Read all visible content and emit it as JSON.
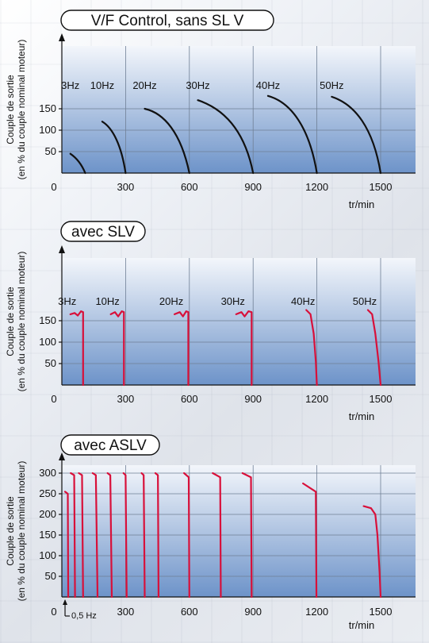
{
  "colors": {
    "plot_top": "#f3f6fb",
    "plot_bottom": "#6d93c9",
    "curve_v_f": "#111111",
    "curve_red": "#d8103a"
  },
  "chart_data": [
    {
      "type": "line",
      "title": "V/F Control, sans   SL V",
      "xlabel": "tr/min",
      "ylabel": [
        "Couple de sortie",
        "(en % du couple nominal moteur)"
      ],
      "xlim": [
        0,
        1650
      ],
      "ylim": [
        0,
        190
      ],
      "xticks": [
        "0",
        "300",
        "600",
        "900",
        "1200",
        "1500"
      ],
      "yticks": [
        "50",
        "100",
        "150"
      ],
      "grid": true,
      "series": [
        {
          "name": "3Hz",
          "x": [
            40,
            70,
            95,
            110
          ],
          "y": [
            45,
            35,
            18,
            0
          ]
        },
        {
          "name": "10Hz",
          "x": [
            190,
            240,
            280,
            300
          ],
          "y": [
            120,
            105,
            65,
            0
          ]
        },
        {
          "name": "20Hz",
          "x": [
            390,
            480,
            560,
            600
          ],
          "y": [
            150,
            140,
            95,
            0
          ]
        },
        {
          "name": "30Hz",
          "x": [
            640,
            760,
            860,
            900
          ],
          "y": [
            170,
            150,
            100,
            0
          ]
        },
        {
          "name": "40Hz",
          "x": [
            970,
            1080,
            1165,
            1200
          ],
          "y": [
            180,
            165,
            105,
            0
          ]
        },
        {
          "name": "50Hz",
          "x": [
            1270,
            1380,
            1465,
            1500
          ],
          "y": [
            178,
            160,
            105,
            0
          ]
        }
      ]
    },
    {
      "type": "line",
      "title": "avec SLV",
      "xlabel": "tr/min",
      "ylabel": [
        "Couple de sortie",
        "(en % du couple nominal moteur)"
      ],
      "xlim": [
        0,
        1650
      ],
      "ylim": [
        0,
        190
      ],
      "xticks": [
        "0",
        "300",
        "600",
        "900",
        "1200",
        "1500"
      ],
      "yticks": [
        "50",
        "100",
        "150"
      ],
      "grid": true,
      "series": [
        {
          "name": "3Hz",
          "x": [
            40,
            60,
            75,
            90,
            100,
            100
          ],
          "y": [
            165,
            168,
            162,
            172,
            170,
            0
          ]
        },
        {
          "name": "10Hz",
          "x": [
            230,
            250,
            265,
            282,
            292,
            292
          ],
          "y": [
            165,
            170,
            160,
            172,
            170,
            0
          ]
        },
        {
          "name": "20Hz",
          "x": [
            530,
            555,
            570,
            585,
            595,
            595
          ],
          "y": [
            165,
            170,
            160,
            172,
            170,
            0
          ]
        },
        {
          "name": "30Hz",
          "x": [
            820,
            845,
            860,
            878,
            893,
            893
          ],
          "y": [
            165,
            170,
            160,
            172,
            170,
            0
          ]
        },
        {
          "name": "40Hz",
          "x": [
            1150,
            1170,
            1185,
            1195,
            1200
          ],
          "y": [
            175,
            165,
            120,
            55,
            0
          ]
        },
        {
          "name": "50Hz",
          "x": [
            1440,
            1460,
            1475,
            1490,
            1500
          ],
          "y": [
            175,
            165,
            120,
            55,
            0
          ]
        }
      ]
    },
    {
      "type": "line",
      "title": "avec ASLV",
      "xlabel": "tr/min",
      "ylabel": [
        "Couple de sortie",
        "(en % du couple nominal moteur)"
      ],
      "xlim": [
        0,
        1650
      ],
      "ylim": [
        0,
        320
      ],
      "xticks": [
        "0",
        "300",
        "600",
        "900",
        "1200",
        "1500"
      ],
      "yticks": [
        "50",
        "100",
        "150",
        "200",
        "250",
        "300"
      ],
      "annotation": "0,5 Hz",
      "grid": true,
      "series": [
        {
          "x": [
            15,
            28,
            30
          ],
          "y": [
            255,
            250,
            0
          ]
        },
        {
          "x": [
            42,
            58,
            62
          ],
          "y": [
            300,
            295,
            0
          ]
        },
        {
          "x": [
            80,
            95,
            100
          ],
          "y": [
            300,
            295,
            0
          ]
        },
        {
          "x": [
            145,
            160,
            168
          ],
          "y": [
            300,
            295,
            0
          ]
        },
        {
          "x": [
            215,
            228,
            235
          ],
          "y": [
            300,
            295,
            0
          ]
        },
        {
          "x": [
            290,
            300,
            305
          ],
          "y": [
            300,
            295,
            0
          ]
        },
        {
          "x": [
            375,
            385,
            390
          ],
          "y": [
            300,
            295,
            0
          ]
        },
        {
          "x": [
            440,
            452,
            455
          ],
          "y": [
            300,
            295,
            0
          ]
        },
        {
          "x": [
            575,
            597,
            600
          ],
          "y": [
            300,
            290,
            0
          ]
        },
        {
          "x": [
            710,
            745,
            748
          ],
          "y": [
            300,
            290,
            0
          ]
        },
        {
          "x": [
            850,
            890,
            893
          ],
          "y": [
            300,
            290,
            0
          ]
        },
        {
          "x": [
            1135,
            1195,
            1198
          ],
          "y": [
            275,
            255,
            0
          ]
        },
        {
          "x": [
            1420,
            1455,
            1475,
            1485,
            1495,
            1500
          ],
          "y": [
            220,
            215,
            200,
            150,
            60,
            0
          ]
        }
      ]
    }
  ]
}
